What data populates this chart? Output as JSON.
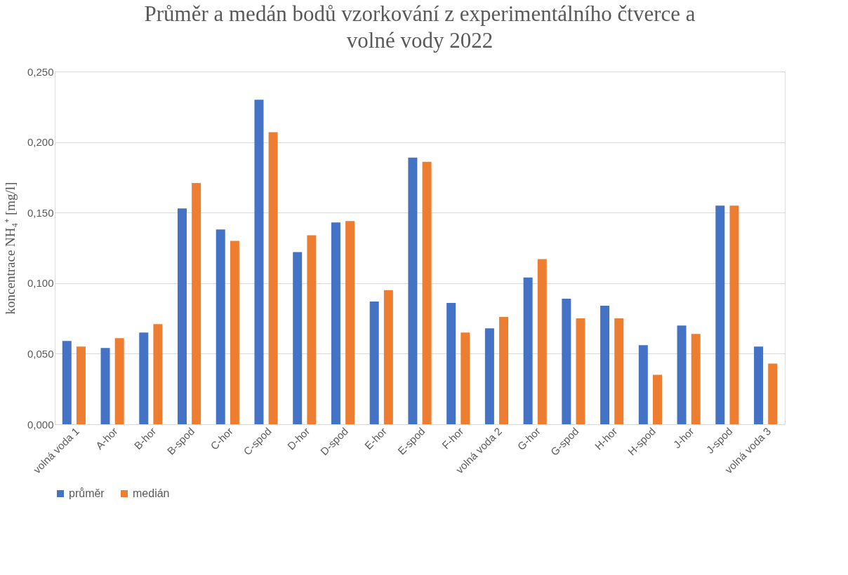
{
  "chart_data": {
    "type": "bar",
    "title": "Průměr a medán bodů vzorkování z experimentálního čtverce a volné vody 2022",
    "ylabel": "koncentrace NH₄⁺ [mg/l]",
    "categories": [
      "volná voda 1",
      "A-hor",
      "B-hor",
      "B-spod",
      "C-hor",
      "C-spod",
      "D-hor",
      "D-spod",
      "E-hor",
      "E-spod",
      "F-hor",
      "volná voda 2",
      "G-hor",
      "G-spod",
      "H-hor",
      "H-spod",
      "J-hor",
      "J-spod",
      "volná voda 3"
    ],
    "series": [
      {
        "name": "průměr",
        "color": "#4472c4",
        "values": [
          0.059,
          0.054,
          0.065,
          0.153,
          0.138,
          0.23,
          0.122,
          0.143,
          0.087,
          0.189,
          0.086,
          0.068,
          0.104,
          0.089,
          0.084,
          0.056,
          0.07,
          0.155,
          0.055
        ]
      },
      {
        "name": "medián",
        "color": "#ed7d31",
        "values": [
          0.055,
          0.061,
          0.071,
          0.171,
          0.13,
          0.207,
          0.134,
          0.144,
          0.095,
          0.186,
          0.065,
          0.076,
          0.117,
          0.075,
          0.075,
          0.035,
          0.064,
          0.155,
          0.043
        ]
      }
    ],
    "ylim": [
      0,
      0.25
    ],
    "yticks": [
      {
        "value": 0,
        "label": "0,000"
      },
      {
        "value": 0.05,
        "label": "0,050"
      },
      {
        "value": 0.1,
        "label": "0,100"
      },
      {
        "value": 0.15,
        "label": "0,150"
      },
      {
        "value": 0.2,
        "label": "0,200"
      },
      {
        "value": 0.25,
        "label": "0,250"
      }
    ],
    "grid": "y",
    "legend": "bottom"
  }
}
